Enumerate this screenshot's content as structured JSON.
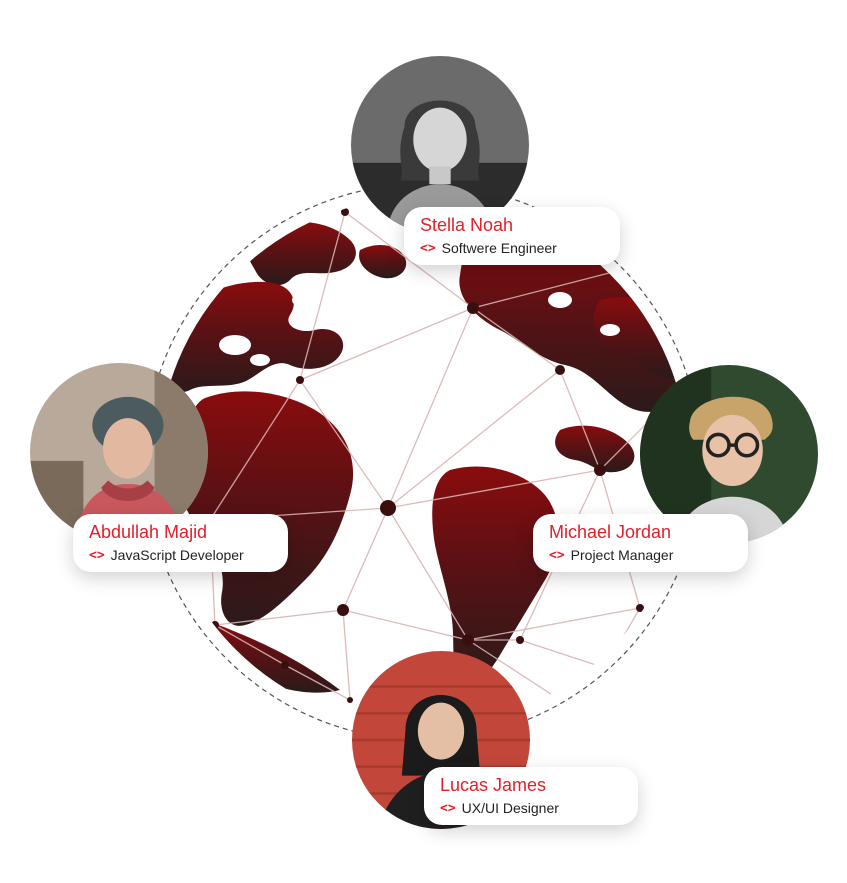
{
  "colors": {
    "accent": "#e0202b",
    "globe_top": "#7a0a0c",
    "globe_bottom": "#2b1a1a",
    "land": "#ffffff",
    "network_line": "#c9a3a3",
    "node": "#3a0e0e"
  },
  "team": [
    {
      "name": "Stella Noah",
      "role": "Softwere Engineer",
      "icon": "code-icon"
    },
    {
      "name": "Abdullah Majid",
      "role": "JavaScript Developer",
      "icon": "code-icon"
    },
    {
      "name": "Michael Jordan",
      "role": "Project Manager",
      "icon": "code-icon"
    },
    {
      "name": "Lucas James",
      "role": "UX/UI Designer",
      "icon": "code-icon"
    }
  ]
}
